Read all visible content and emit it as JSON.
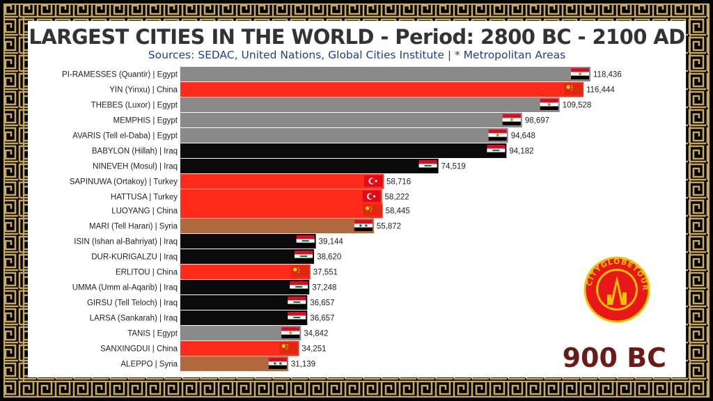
{
  "title": "LARGEST CITIES IN THE WORLD - Period: 2800 BC - 2100 AD",
  "subtitle": "Sources: SEDAC, United Nations, Global Cities Institute | * Metropolitan Areas",
  "year": "900 BC",
  "logo": {
    "text": "CITYGLOBETOUR"
  },
  "colors": {
    "Egypt": "#8a8a8a",
    "China": "#ff2a1a",
    "Iraq": "#0b0b0b",
    "Turkey": "#ff2a1a",
    "Syria": "#b0683e",
    "border_gold": "#c9a862",
    "title": "#333333",
    "subtitle": "#1e3e9a",
    "year": "#6b1a1a"
  },
  "chart_data": {
    "type": "bar",
    "orientation": "horizontal",
    "title": "LARGEST CITIES IN THE WORLD - Period: 2800 BC - 2100 AD",
    "grid": false,
    "legend": "none",
    "xlim": [
      0,
      125000
    ],
    "categories": [
      "PI-RAMESSES (Quantir) | Egypt",
      "YIN (Yinxu) | China",
      "THEBES (Luxor) | Egypt",
      "MEMPHIS | Egypt",
      "AVARIS (Tell el-Daba) | Egypt",
      "BABYLON (Hillah) | Iraq",
      "NINEVEH (Mosul) | Iraq",
      "SAPINUWA (Ortakoy) | Turkey",
      "HATTUSA | Turkey",
      "LUOYANG | China",
      "MARI (Tell Harari) | Syria",
      "ISIN (Ishan al-Bahriyat) | Iraq",
      "DUR-KURIGALZU | Iraq",
      "ERLITOU | China",
      "UMMA (Umm al-Aqarib) | Iraq",
      "GIRSU (Tell Teloch) | Iraq",
      "LARSA (Sankarah) | Iraq",
      "TANIS | Egypt",
      "SANXINGDUI | China",
      "ALEPPO | Syria"
    ],
    "countries": [
      "Egypt",
      "China",
      "Egypt",
      "Egypt",
      "Egypt",
      "Iraq",
      "Iraq",
      "Turkey",
      "Turkey",
      "China",
      "Syria",
      "Iraq",
      "Iraq",
      "China",
      "Iraq",
      "Iraq",
      "Iraq",
      "Egypt",
      "China",
      "Syria"
    ],
    "values": [
      118436,
      116444,
      109528,
      98697,
      94648,
      94182,
      74519,
      58716,
      58222,
      58445,
      55872,
      39144,
      38620,
      37551,
      37248,
      36657,
      36657,
      34842,
      34251,
      31139
    ],
    "value_labels": [
      "118,436",
      "116,444",
      "109,528",
      "98,697",
      "94,648",
      "94,182",
      "74,519",
      "58,716",
      "58,222",
      "58,445",
      "55,872",
      "39,144",
      "38,620",
      "37,551",
      "37,248",
      "36,657",
      "36,657",
      "34,842",
      "34,251",
      "31,139"
    ]
  }
}
